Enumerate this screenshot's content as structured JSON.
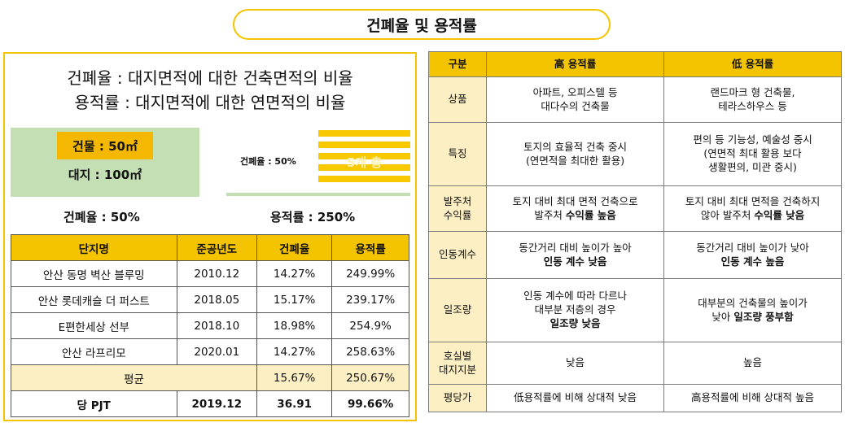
{
  "title": "건폐율 및 용적률",
  "definitions": {
    "coverage": "건폐율 : 대지면적에 대한 건축면적의 비율",
    "far": "용적률 : 대지면적에 대한 연면적의 비율"
  },
  "diagram": {
    "building_label": "건물 : 50㎡",
    "land_label": "대지 : 100㎡",
    "small_label": "건폐율 : 50%",
    "floors_label": "5개 층",
    "coverage_result": "건폐율 : 50%",
    "far_result": "용적률 : 250%"
  },
  "projects_table": {
    "headers": [
      "단지명",
      "준공년도",
      "건폐율",
      "용적률"
    ],
    "rows": [
      [
        "안산 동명 벽산 블루밍",
        "2010.12",
        "14.27%",
        "249.99%"
      ],
      [
        "안산 롯데캐슬 더 퍼스트",
        "2018.05",
        "15.17%",
        "239.17%"
      ],
      [
        "E편한세상 선부",
        "2018.10",
        "18.98%",
        "254.9%"
      ],
      [
        "안산 라프리모",
        "2020.01",
        "14.27%",
        "258.63%"
      ]
    ],
    "average": {
      "label": "평균",
      "coverage": "15.67%",
      "far": "250.67%"
    },
    "ours": [
      "당 PJT",
      "2019.12",
      "36.91",
      "99.66%"
    ]
  },
  "compare_table": {
    "headers": [
      "구분",
      "高 용적률",
      "低 용적률"
    ],
    "rows": [
      {
        "cat": [
          "상품"
        ],
        "high": [
          [
            "아파트, 오피스텔 등"
          ],
          [
            "대다수의 건축물"
          ]
        ],
        "low": [
          [
            "랜드마크 형 건축물,"
          ],
          [
            "테라스하우스 등"
          ]
        ]
      },
      {
        "cat": [
          "특징"
        ],
        "high": [
          [
            "토지의 효율적 건축 중시"
          ],
          [
            "(연면적을 최대한 활용)"
          ]
        ],
        "low": [
          [
            "편의 등 기능성, 예술성 중시"
          ],
          [
            "(연면적 최대 활용 보다"
          ],
          [
            "생활편의, 미관 중시)"
          ]
        ]
      },
      {
        "cat": [
          "발주처",
          "수익률"
        ],
        "high": [
          [
            "토지 대비 최대 면적 건축으로"
          ],
          [
            "발주처 ",
            "수익률 높음"
          ]
        ],
        "low": [
          [
            "토지 대비 최대 면적을 건축하지"
          ],
          [
            "않아 발주처 ",
            "수익률 낮음"
          ]
        ]
      },
      {
        "cat": [
          "인동계수"
        ],
        "high": [
          [
            "동간거리 대비 높이가 높아"
          ],
          [
            "",
            "인동 계수 낮음"
          ]
        ],
        "low": [
          [
            "동간거리 대비 높이가 낮아"
          ],
          [
            "",
            "인동 계수 높음"
          ]
        ]
      },
      {
        "cat": [
          "일조량"
        ],
        "high": [
          [
            "인동 계수에 따라 다르나"
          ],
          [
            "대부분 저층의 경우"
          ],
          [
            "",
            "일조량 낮음"
          ]
        ],
        "low": [
          [
            "대부분의 건축물의 높이가"
          ],
          [
            "낮아 ",
            "일조량 풍부함"
          ]
        ]
      },
      {
        "cat": [
          "호실별",
          "대지지분"
        ],
        "high": [
          [
            "낮음"
          ]
        ],
        "low": [
          [
            "높음"
          ]
        ]
      },
      {
        "cat": [
          "평당가"
        ],
        "high": [
          [
            "低용적률에 비해 상대적 낮음"
          ]
        ],
        "low": [
          [
            "高용적률에 비해 상대적 높음"
          ]
        ]
      }
    ]
  }
}
